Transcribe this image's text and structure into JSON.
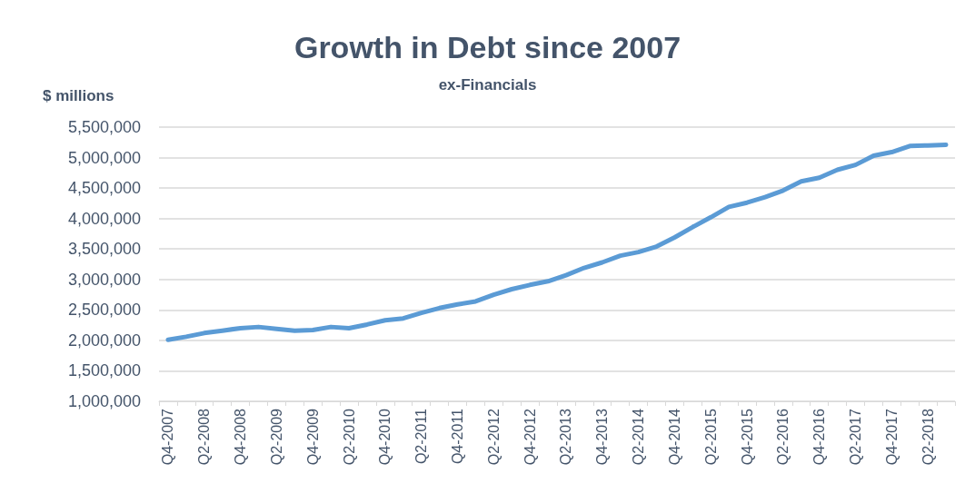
{
  "chart_data": {
    "type": "line",
    "title": "Growth in Debt since 2007",
    "subtitle": "ex-Financials",
    "ylabel": "$ millions",
    "categories": [
      "Q4-2007",
      null,
      "Q2-2008",
      null,
      "Q4-2008",
      null,
      "Q2-2009",
      null,
      "Q4-2009",
      null,
      "Q2-2010",
      null,
      "Q4-2010",
      null,
      "Q2-2011",
      null,
      "Q4-2011",
      null,
      "Q2-2012",
      null,
      "Q4-2012",
      null,
      "Q2-2013",
      null,
      "Q4-2013",
      null,
      "Q2-2014",
      null,
      "Q4-2014",
      null,
      "Q2-2015",
      null,
      "Q4-2015",
      null,
      "Q2-2016",
      null,
      "Q4-2016",
      null,
      "Q2-2017",
      null,
      "Q4-2017",
      null,
      "Q2-2018",
      null
    ],
    "series": [
      {
        "color": "#5b9bd5",
        "values": [
          2010000,
          2060000,
          2120000,
          2160000,
          2200000,
          2220000,
          2190000,
          2160000,
          2170000,
          2220000,
          2200000,
          2260000,
          2330000,
          2360000,
          2450000,
          2530000,
          2590000,
          2640000,
          2750000,
          2840000,
          2910000,
          2970000,
          3070000,
          3190000,
          3280000,
          3390000,
          3450000,
          3540000,
          3690000,
          3860000,
          4020000,
          4190000,
          4260000,
          4350000,
          4460000,
          4610000,
          4670000,
          4800000,
          4880000,
          5030000,
          5090000,
          5190000,
          5200000,
          5210000
        ]
      }
    ],
    "ylim": [
      1000000,
      5500000
    ],
    "yticks": [
      {
        "value": 1000000,
        "label": "1,000,000"
      },
      {
        "value": 1500000,
        "label": "1,500,000"
      },
      {
        "value": 2000000,
        "label": "2,000,000"
      },
      {
        "value": 2500000,
        "label": "2,500,000"
      },
      {
        "value": 3000000,
        "label": "3,000,000"
      },
      {
        "value": 3500000,
        "label": "3,500,000"
      },
      {
        "value": 4000000,
        "label": "4,000,000"
      },
      {
        "value": 4500000,
        "label": "4,500,000"
      },
      {
        "value": 5000000,
        "label": "5,000,000"
      },
      {
        "value": 5500000,
        "label": "5,500,000"
      }
    ],
    "grid": "y",
    "marker": "none",
    "line_style": "solid"
  }
}
